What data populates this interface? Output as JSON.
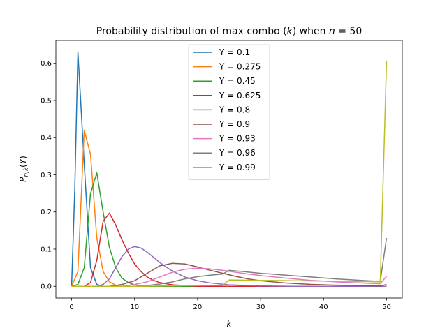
{
  "chart_data": {
    "type": "line",
    "title": "Probability distribution of max combo (k) when n = 50",
    "xlabel": "k",
    "ylabel": "P_{n,k}(Y)",
    "xlim": [
      -2.5,
      52.5
    ],
    "ylim": [
      -0.0315,
      0.6615
    ],
    "xticks": [
      0,
      10,
      20,
      30,
      40,
      50
    ],
    "yticks": [
      0.0,
      0.1,
      0.2,
      0.3,
      0.4,
      0.5,
      0.6
    ],
    "xtick_labels": [
      "0",
      "10",
      "20",
      "30",
      "40",
      "50"
    ],
    "ytick_labels": [
      "0.0",
      "0.1",
      "0.2",
      "0.3",
      "0.4",
      "0.5",
      "0.6"
    ],
    "grid": false,
    "legend": "top-center",
    "series": [
      {
        "name": "Y = 0.1",
        "color": "#1f77b4",
        "points": [
          [
            0,
            0.0
          ],
          [
            0.5,
            0.26
          ],
          [
            1,
            0.63
          ],
          [
            2,
            0.33
          ],
          [
            3,
            0.05
          ],
          [
            4,
            0.005
          ],
          [
            5,
            0.0
          ],
          [
            6,
            0.0
          ],
          [
            50,
            0.0
          ]
        ]
      },
      {
        "name": "Y = 0.275",
        "color": "#ff7f0e",
        "points": [
          [
            0,
            0.0
          ],
          [
            1,
            0.04
          ],
          [
            2,
            0.42
          ],
          [
            3,
            0.355
          ],
          [
            4,
            0.13
          ],
          [
            5,
            0.04
          ],
          [
            6,
            0.012
          ],
          [
            7,
            0.003
          ],
          [
            8,
            0.0
          ],
          [
            9,
            0.0
          ],
          [
            50,
            0.0
          ]
        ]
      },
      {
        "name": "Y = 0.45",
        "color": "#2ca02c",
        "points": [
          [
            0,
            0.0
          ],
          [
            1,
            0.005
          ],
          [
            2,
            0.05
          ],
          [
            3,
            0.25
          ],
          [
            4,
            0.305
          ],
          [
            5,
            0.2
          ],
          [
            6,
            0.105
          ],
          [
            7,
            0.05
          ],
          [
            8,
            0.022
          ],
          [
            9,
            0.01
          ],
          [
            10,
            0.004
          ],
          [
            12,
            0.0
          ],
          [
            50,
            0.0
          ]
        ]
      },
      {
        "name": "Y = 0.625",
        "color": "#d62728",
        "points": [
          [
            0,
            0.0
          ],
          [
            2,
            0.0
          ],
          [
            3,
            0.01
          ],
          [
            4,
            0.07
          ],
          [
            5,
            0.175
          ],
          [
            6,
            0.197
          ],
          [
            7,
            0.165
          ],
          [
            8,
            0.125
          ],
          [
            9,
            0.09
          ],
          [
            10,
            0.06
          ],
          [
            11,
            0.04
          ],
          [
            12,
            0.025
          ],
          [
            13,
            0.016
          ],
          [
            14,
            0.01
          ],
          [
            16,
            0.004
          ],
          [
            18,
            0.002
          ],
          [
            20,
            0.0
          ],
          [
            50,
            0.0
          ]
        ]
      },
      {
        "name": "Y = 0.8",
        "color": "#9467bd",
        "points": [
          [
            0,
            0.0
          ],
          [
            4,
            0.0
          ],
          [
            5,
            0.005
          ],
          [
            6,
            0.02
          ],
          [
            7,
            0.05
          ],
          [
            8,
            0.08
          ],
          [
            9,
            0.1
          ],
          [
            10,
            0.107
          ],
          [
            11,
            0.103
          ],
          [
            12,
            0.092
          ],
          [
            13,
            0.078
          ],
          [
            14,
            0.064
          ],
          [
            15,
            0.052
          ],
          [
            16,
            0.041
          ],
          [
            18,
            0.025
          ],
          [
            20,
            0.015
          ],
          [
            22,
            0.009
          ],
          [
            25,
            0.004
          ],
          [
            28,
            0.002
          ],
          [
            30,
            0.001
          ],
          [
            35,
            0.0
          ],
          [
            50,
            0.0
          ]
        ]
      },
      {
        "name": "Y = 0.9",
        "color": "#8c564b",
        "points": [
          [
            0,
            0.0
          ],
          [
            6,
            0.0
          ],
          [
            8,
            0.005
          ],
          [
            10,
            0.015
          ],
          [
            12,
            0.035
          ],
          [
            14,
            0.055
          ],
          [
            16,
            0.062
          ],
          [
            18,
            0.06
          ],
          [
            20,
            0.052
          ],
          [
            22,
            0.043
          ],
          [
            24,
            0.035
          ],
          [
            26,
            0.027
          ],
          [
            28,
            0.02
          ],
          [
            30,
            0.015
          ],
          [
            34,
            0.009
          ],
          [
            38,
            0.005
          ],
          [
            42,
            0.003
          ],
          [
            46,
            0.002
          ],
          [
            49,
            0.001
          ],
          [
            50,
            0.005
          ]
        ]
      },
      {
        "name": "Y = 0.93",
        "color": "#e377c2",
        "points": [
          [
            0,
            0.0
          ],
          [
            8,
            0.0
          ],
          [
            10,
            0.005
          ],
          [
            12,
            0.012
          ],
          [
            14,
            0.025
          ],
          [
            16,
            0.038
          ],
          [
            18,
            0.046
          ],
          [
            20,
            0.049
          ],
          [
            22,
            0.047
          ],
          [
            24,
            0.043
          ],
          [
            26,
            0.038
          ],
          [
            28,
            0.033
          ],
          [
            30,
            0.029
          ],
          [
            34,
            0.022
          ],
          [
            38,
            0.016
          ],
          [
            42,
            0.012
          ],
          [
            46,
            0.009
          ],
          [
            49,
            0.007
          ],
          [
            50,
            0.027
          ]
        ]
      },
      {
        "name": "Y = 0.96",
        "color": "#7f7f7f",
        "points": [
          [
            0,
            0.0
          ],
          [
            10,
            0.0
          ],
          [
            12,
            0.002
          ],
          [
            14,
            0.006
          ],
          [
            16,
            0.012
          ],
          [
            18,
            0.02
          ],
          [
            20,
            0.026
          ],
          [
            22,
            0.03
          ],
          [
            24,
            0.033
          ],
          [
            25,
            0.043
          ],
          [
            27,
            0.04
          ],
          [
            30,
            0.035
          ],
          [
            34,
            0.03
          ],
          [
            38,
            0.025
          ],
          [
            42,
            0.02
          ],
          [
            46,
            0.016
          ],
          [
            49,
            0.013
          ],
          [
            50,
            0.13
          ]
        ]
      },
      {
        "name": "Y = 0.99",
        "color": "#bcbd22",
        "points": [
          [
            0,
            0.0
          ],
          [
            10,
            0.0
          ],
          [
            20,
            0.002
          ],
          [
            24,
            0.003
          ],
          [
            25,
            0.017
          ],
          [
            30,
            0.016
          ],
          [
            35,
            0.015
          ],
          [
            40,
            0.014
          ],
          [
            45,
            0.013
          ],
          [
            49,
            0.012
          ],
          [
            50,
            0.605
          ]
        ]
      }
    ]
  }
}
